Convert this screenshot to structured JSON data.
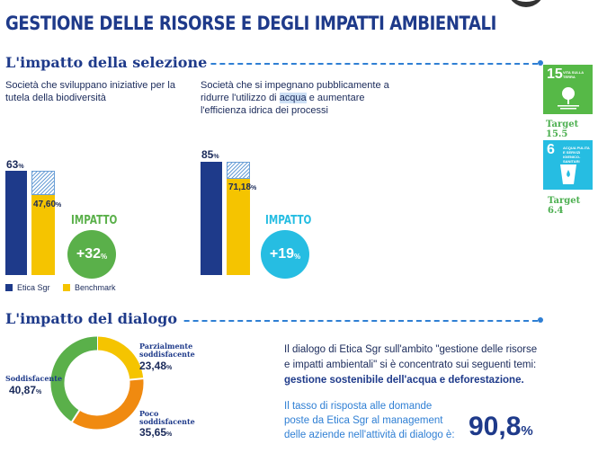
{
  "page_title": "GESTIONE DELLE RISORSE E DEGLI IMPATTI AMBIENTALI",
  "section1": {
    "heading": "L'impatto della selezione",
    "chart1": {
      "description": "Società che sviluppano iniziative per la tutela della biodiversità",
      "etica_value": "63",
      "benchmark_value": "47,60",
      "impact_label": "IMPATTO",
      "impact_value": "+32",
      "pct": "%"
    },
    "chart2": {
      "description_before": "Società che si impegnano pubblicamente a ridurre l'utilizzo di ",
      "description_highlight": "acqua",
      "description_after": " e aumentare l'efficienza idrica dei processi",
      "etica_value": "85",
      "benchmark_value": "71,18",
      "impact_label": "IMPATTO",
      "impact_value": "+19",
      "pct": "%"
    },
    "legend": {
      "etica": "Etica Sgr",
      "benchmark": "Benchmark"
    },
    "sdg": [
      {
        "number": "15",
        "name": "VITA SULLA TERRA",
        "target": "Target 15.5",
        "color": "#56b947"
      },
      {
        "number": "6",
        "name": "ACQUA PULITA E SERVIZI IGIENICO-SANITARI",
        "target": "Target 6.4",
        "color": "#26bde2"
      }
    ]
  },
  "section2": {
    "heading": "L'impatto del dialogo",
    "chart_data": {
      "type": "pie",
      "title": "",
      "categories": [
        "Soddisfacente",
        "Parzialmente soddisfacente",
        "Poco soddisfacente"
      ],
      "values": [
        40.87,
        23.48,
        35.65
      ],
      "colors": [
        "#5ab04a",
        "#f5c400",
        "#f08a10"
      ]
    },
    "labels": {
      "soddisfacente": {
        "name": "Soddisfacente",
        "value": "40,87"
      },
      "parzialmente": {
        "name_1": "Parzialmente",
        "name_2": "soddisfacente",
        "value": "23,48"
      },
      "poco": {
        "name_1": "Poco",
        "name_2": "soddisfacente",
        "value": "35,65"
      },
      "pct": "%"
    },
    "paragraph": {
      "line1": "Il dialogo di Etica Sgr sull'ambito \"gestione delle risorse",
      "line2": "e impatti ambientali\" si è concentrato sui seguenti temi:",
      "bold": "gestione sostenibile dell'acqua e deforestazione."
    },
    "response": {
      "line1": "Il tasso di risposta alle domande",
      "line2": "poste da Etica Sgr al management",
      "line3": "delle aziende nell'attività di dialogo è:",
      "value": "90,8",
      "pct": "%"
    }
  }
}
